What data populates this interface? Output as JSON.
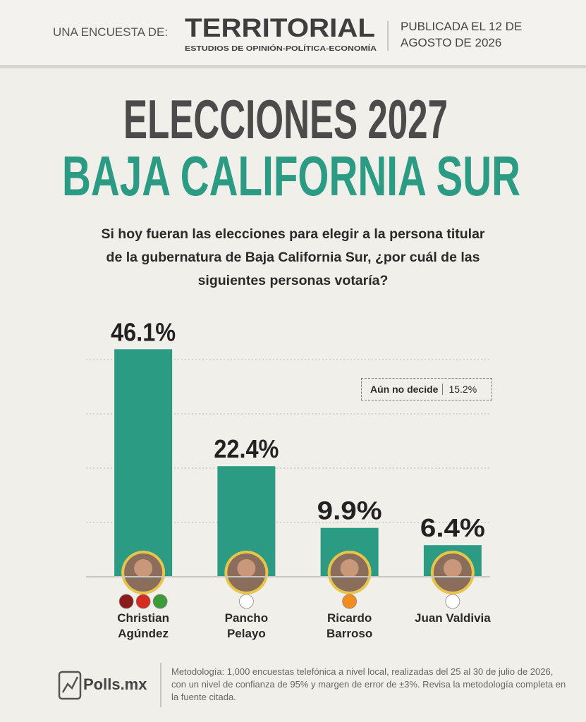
{
  "header": {
    "intro": "UNA ENCUESTA DE:",
    "brand": "TERRITORIAL",
    "brand_tagline": "ESTUDIOS DE OPINIÓN-POLÍTICA-ECONOMÍA",
    "published": "PUBLICADA EL 12 DE AGOSTO DE 2026"
  },
  "chart_data": {
    "type": "bar",
    "title": "ELECCIONES 2027",
    "subtitle": "BAJA CALIFORNIA SUR",
    "question": "Si hoy fueran las elecciones para elegir a la persona titular de la gubernatura de Baja California Sur, ¿por cuál de las siguientes personas votaría?",
    "categories": [
      "Christian Agúndez",
      "Pancho Pelayo",
      "Ricardo Barroso",
      "Juan Valdivia"
    ],
    "values": [
      46.1,
      22.4,
      9.9,
      6.4
    ],
    "value_labels": [
      "46.1%",
      "22.4%",
      "9.9%",
      "6.4%"
    ],
    "color": "#2b9b83",
    "ylim": [
      0,
      50
    ],
    "yticks": [
      11,
      22,
      33,
      44
    ],
    "grid": true,
    "annotation": {
      "label": "Aún no decide",
      "value_label": "15.2%"
    }
  },
  "footer": {
    "logo": "Polls.mx",
    "methodology": "Metodología: 1,000 encuestas telefónica a nivel local, realizadas del 25 al 30 de julio de 2026, con un nivel de confianza de 95% y margen de error de ±3%. Revisa la metodología completa en la fuente citada."
  }
}
